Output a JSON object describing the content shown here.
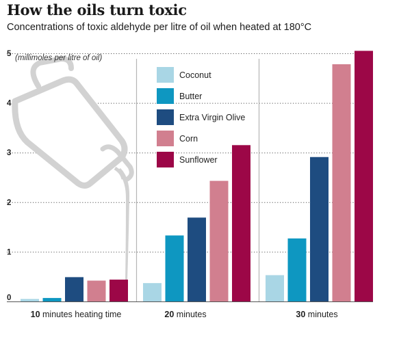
{
  "title": "How the oils turn toxic",
  "subtitle": "Concentrations of toxic aldehyde per litre of oil when heated at 180°C",
  "colors": {
    "Coconut": "#a9d6e5",
    "Butter": "#0e97c1",
    "Extra Virgin Olive": "#1e4c80",
    "Corn": "#d17f8f",
    "Sunflower": "#9c0747",
    "grid": "#555555",
    "separator": "#b5b5b5",
    "jug": "#d2d2d2"
  },
  "icons": [
    "oil-jug-icon"
  ],
  "chart_data": {
    "type": "bar",
    "title": "How the oils turn toxic",
    "subtitle": "Concentrations of toxic aldehyde per litre of oil when heated at 180°C",
    "ylabel": "(millimoles per litre of oil)",
    "ylim": [
      0,
      5
    ],
    "yticks": [
      0,
      1,
      2,
      3,
      4,
      5
    ],
    "grid": true,
    "legend": "top-center",
    "categories": [
      {
        "bold": "10",
        "rest": " minutes heating time"
      },
      {
        "bold": "20",
        "rest": " minutes"
      },
      {
        "bold": "30",
        "rest": " minutes"
      }
    ],
    "series": [
      {
        "name": "Coconut",
        "values": [
          0.05,
          0.37,
          0.53
        ]
      },
      {
        "name": "Butter",
        "values": [
          0.07,
          1.33,
          1.27
        ]
      },
      {
        "name": "Extra Virgin Olive",
        "values": [
          0.49,
          1.69,
          2.91
        ]
      },
      {
        "name": "Corn",
        "values": [
          0.42,
          2.43,
          4.78
        ]
      },
      {
        "name": "Sunflower",
        "values": [
          0.44,
          3.15,
          5.05
        ]
      }
    ]
  }
}
